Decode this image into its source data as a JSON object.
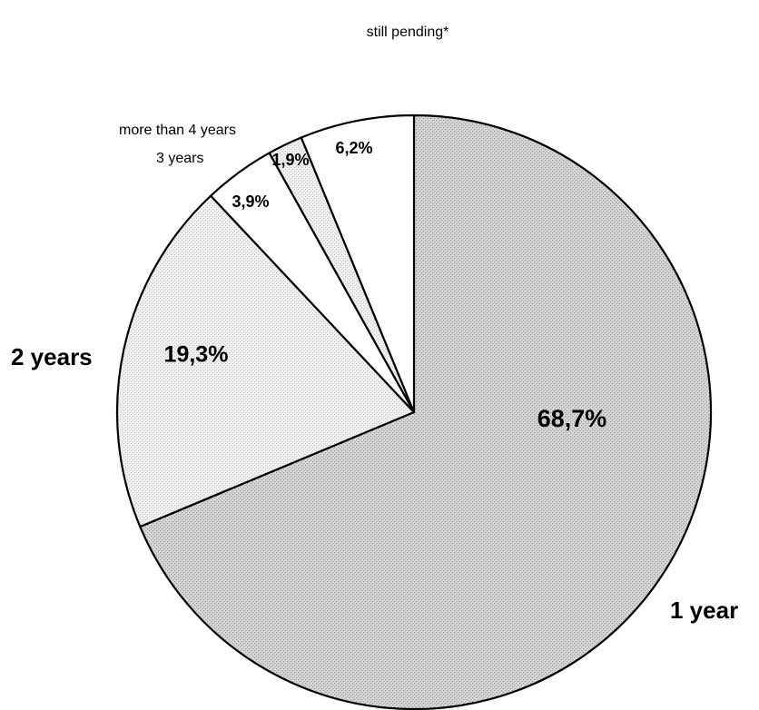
{
  "chart_data": {
    "type": "pie",
    "title": "",
    "start_angle_deg": 0,
    "direction": "clockwise",
    "slices": [
      {
        "label": "1 year",
        "value": 68.7,
        "value_label": "68,7%",
        "fill": "dots-dark",
        "label_style": "large"
      },
      {
        "label": "2 years",
        "value": 19.3,
        "value_label": "19,3%",
        "fill": "dots-light",
        "label_style": "large"
      },
      {
        "label": "3 years",
        "value": 3.9,
        "value_label": "3,9%",
        "fill": "white",
        "label_style": "small"
      },
      {
        "label": "more than 4 years",
        "value": 1.9,
        "value_label": "1,9%",
        "fill": "dots-light",
        "label_style": "small"
      },
      {
        "label": "still pending*",
        "value": 6.2,
        "value_label": "6,2%",
        "fill": "white",
        "label_style": "small"
      }
    ]
  },
  "colors": {
    "background": "#ffffff",
    "outline": "#000000",
    "dots_dark_base": "#d9d9d9",
    "dots_dark_dot": "#9a9a9a",
    "dots_light_base": "#f2f2f2",
    "dots_light_dot": "#c4c4c4"
  }
}
